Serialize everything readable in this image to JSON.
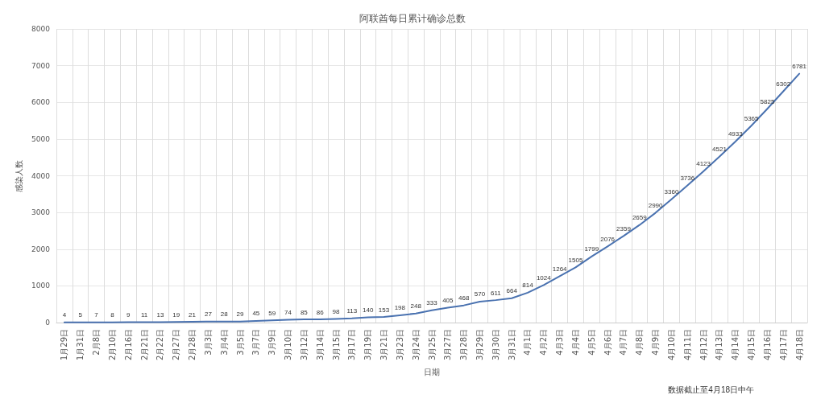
{
  "chart_data": {
    "type": "line",
    "title": "阿联酋每日累计确诊总数",
    "xlabel": "日期",
    "ylabel": "感染人数",
    "annotations": [
      "数据截止至4月18日中午"
    ],
    "categories": [
      "1月29日",
      "1月31日",
      "2月8日",
      "2月10日",
      "2月16日",
      "2月21日",
      "2月22日",
      "2月27日",
      "2月28日",
      "3月3日",
      "3月4日",
      "3月5日",
      "3月7日",
      "3月9日",
      "3月10日",
      "3月12日",
      "3月14日",
      "3月15日",
      "3月17日",
      "3月19日",
      "3月21日",
      "3月23日",
      "3月24日",
      "3月25日",
      "3月27日",
      "3月28日",
      "3月29日",
      "3月30日",
      "3月31日",
      "4月1日",
      "4月2日",
      "4月3日",
      "4月4日",
      "4月5日",
      "4月6日",
      "4月7日",
      "4月8日",
      "4月9日",
      "4月10日",
      "4月11日",
      "4月12日",
      "4月13日",
      "4月14日",
      "4月15日",
      "4月16日",
      "4月17日",
      "4月18日"
    ],
    "series": [
      {
        "color": "#4a72b0",
        "values": [
          4,
          5,
          7,
          8,
          9,
          11,
          13,
          19,
          21,
          27,
          28,
          29,
          45,
          59,
          74,
          85,
          86,
          98,
          113,
          140,
          153,
          198,
          248,
          333,
          405,
          468,
          570,
          611,
          664,
          814,
          1024,
          1264,
          1505,
          1799,
          2076,
          2359,
          2659,
          2990,
          3360,
          3736,
          4123,
          4521,
          4933,
          5365,
          5825,
          6302,
          6781
        ]
      }
    ],
    "ylim": [
      0,
      8000
    ],
    "yticks": [
      0,
      1000,
      2000,
      3000,
      4000,
      5000,
      6000,
      7000,
      8000
    ],
    "grid": true,
    "data_labels": true,
    "marker": "none",
    "line_style": "solid"
  }
}
